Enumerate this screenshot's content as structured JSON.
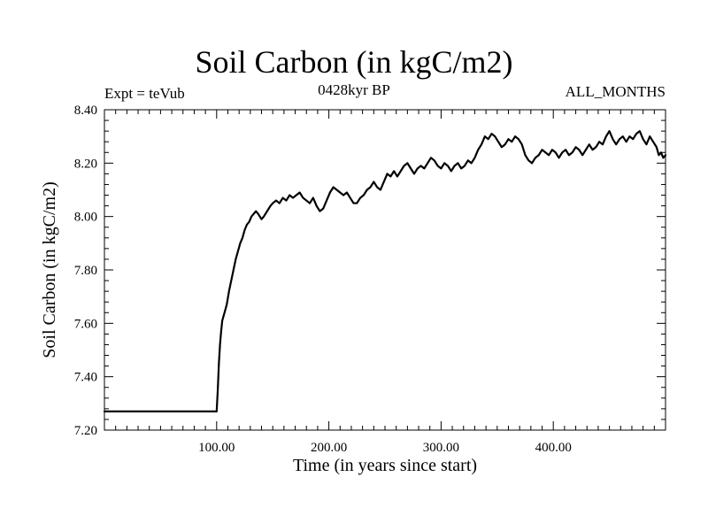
{
  "chart_data": {
    "type": "line",
    "title": "Soil Carbon (in kgC/m2)",
    "subtitle": "0428kyr BP",
    "left_label": "Expt = teVub",
    "right_label": "ALL_MONTHS",
    "xlabel": "Time (in years since start)",
    "ylabel": "Soil Carbon (in kgC/m2)",
    "xlim": [
      0,
      500
    ],
    "ylim": [
      7.2,
      8.4
    ],
    "xticks": [
      100,
      200,
      300,
      400
    ],
    "xtick_labels": [
      "100.00",
      "200.00",
      "300.00",
      "400.00"
    ],
    "yticks": [
      7.2,
      7.4,
      7.6,
      7.8,
      8.0,
      8.2,
      8.4
    ],
    "ytick_labels": [
      "7.20",
      "7.40",
      "7.60",
      "7.80",
      "8.00",
      "8.20",
      "8.40"
    ],
    "grid": false,
    "series": [
      {
        "color": "#000000",
        "points": [
          [
            0,
            7.27
          ],
          [
            99,
            7.27
          ],
          [
            100,
            7.27
          ],
          [
            101,
            7.35
          ],
          [
            102,
            7.45
          ],
          [
            103,
            7.52
          ],
          [
            104,
            7.57
          ],
          [
            105,
            7.61
          ],
          [
            107,
            7.64
          ],
          [
            109,
            7.67
          ],
          [
            111,
            7.72
          ],
          [
            113,
            7.76
          ],
          [
            115,
            7.8
          ],
          [
            117,
            7.84
          ],
          [
            119,
            7.87
          ],
          [
            121,
            7.9
          ],
          [
            123,
            7.92
          ],
          [
            125,
            7.95
          ],
          [
            127,
            7.97
          ],
          [
            129,
            7.98
          ],
          [
            131,
            8.0
          ],
          [
            133,
            8.01
          ],
          [
            135,
            8.02
          ],
          [
            137,
            8.01
          ],
          [
            140,
            7.99
          ],
          [
            142,
            8.0
          ],
          [
            145,
            8.02
          ],
          [
            148,
            8.04
          ],
          [
            150,
            8.05
          ],
          [
            153,
            8.06
          ],
          [
            156,
            8.05
          ],
          [
            159,
            8.07
          ],
          [
            162,
            8.06
          ],
          [
            165,
            8.08
          ],
          [
            168,
            8.07
          ],
          [
            171,
            8.08
          ],
          [
            174,
            8.09
          ],
          [
            177,
            8.07
          ],
          [
            180,
            8.06
          ],
          [
            183,
            8.05
          ],
          [
            186,
            8.07
          ],
          [
            189,
            8.04
          ],
          [
            192,
            8.02
          ],
          [
            195,
            8.03
          ],
          [
            198,
            8.06
          ],
          [
            201,
            8.09
          ],
          [
            204,
            8.11
          ],
          [
            207,
            8.1
          ],
          [
            210,
            8.09
          ],
          [
            213,
            8.08
          ],
          [
            216,
            8.09
          ],
          [
            219,
            8.07
          ],
          [
            222,
            8.05
          ],
          [
            225,
            8.05
          ],
          [
            228,
            8.07
          ],
          [
            231,
            8.08
          ],
          [
            234,
            8.1
          ],
          [
            237,
            8.11
          ],
          [
            240,
            8.13
          ],
          [
            243,
            8.11
          ],
          [
            246,
            8.1
          ],
          [
            249,
            8.13
          ],
          [
            252,
            8.16
          ],
          [
            255,
            8.15
          ],
          [
            258,
            8.17
          ],
          [
            261,
            8.15
          ],
          [
            264,
            8.17
          ],
          [
            267,
            8.19
          ],
          [
            270,
            8.2
          ],
          [
            273,
            8.18
          ],
          [
            276,
            8.16
          ],
          [
            279,
            8.18
          ],
          [
            282,
            8.19
          ],
          [
            285,
            8.18
          ],
          [
            288,
            8.2
          ],
          [
            291,
            8.22
          ],
          [
            294,
            8.21
          ],
          [
            297,
            8.19
          ],
          [
            300,
            8.18
          ],
          [
            303,
            8.2
          ],
          [
            306,
            8.19
          ],
          [
            309,
            8.17
          ],
          [
            312,
            8.19
          ],
          [
            315,
            8.2
          ],
          [
            318,
            8.18
          ],
          [
            321,
            8.19
          ],
          [
            324,
            8.21
          ],
          [
            327,
            8.2
          ],
          [
            330,
            8.22
          ],
          [
            333,
            8.25
          ],
          [
            336,
            8.27
          ],
          [
            339,
            8.3
          ],
          [
            342,
            8.29
          ],
          [
            345,
            8.31
          ],
          [
            348,
            8.3
          ],
          [
            351,
            8.28
          ],
          [
            354,
            8.26
          ],
          [
            357,
            8.27
          ],
          [
            360,
            8.29
          ],
          [
            363,
            8.28
          ],
          [
            366,
            8.3
          ],
          [
            369,
            8.29
          ],
          [
            372,
            8.27
          ],
          [
            375,
            8.23
          ],
          [
            378,
            8.21
          ],
          [
            381,
            8.2
          ],
          [
            384,
            8.22
          ],
          [
            387,
            8.23
          ],
          [
            390,
            8.25
          ],
          [
            393,
            8.24
          ],
          [
            396,
            8.23
          ],
          [
            399,
            8.25
          ],
          [
            402,
            8.24
          ],
          [
            405,
            8.22
          ],
          [
            408,
            8.24
          ],
          [
            411,
            8.25
          ],
          [
            414,
            8.23
          ],
          [
            417,
            8.24
          ],
          [
            420,
            8.26
          ],
          [
            423,
            8.25
          ],
          [
            426,
            8.23
          ],
          [
            429,
            8.25
          ],
          [
            432,
            8.27
          ],
          [
            435,
            8.25
          ],
          [
            438,
            8.26
          ],
          [
            441,
            8.28
          ],
          [
            444,
            8.27
          ],
          [
            447,
            8.3
          ],
          [
            450,
            8.32
          ],
          [
            453,
            8.29
          ],
          [
            456,
            8.27
          ],
          [
            459,
            8.29
          ],
          [
            462,
            8.3
          ],
          [
            465,
            8.28
          ],
          [
            468,
            8.3
          ],
          [
            471,
            8.29
          ],
          [
            474,
            8.31
          ],
          [
            477,
            8.32
          ],
          [
            480,
            8.29
          ],
          [
            483,
            8.27
          ],
          [
            486,
            8.3
          ],
          [
            489,
            8.28
          ],
          [
            492,
            8.26
          ],
          [
            494,
            8.23
          ],
          [
            496,
            8.24
          ],
          [
            498,
            8.22
          ],
          [
            500,
            8.23
          ]
        ]
      }
    ]
  }
}
